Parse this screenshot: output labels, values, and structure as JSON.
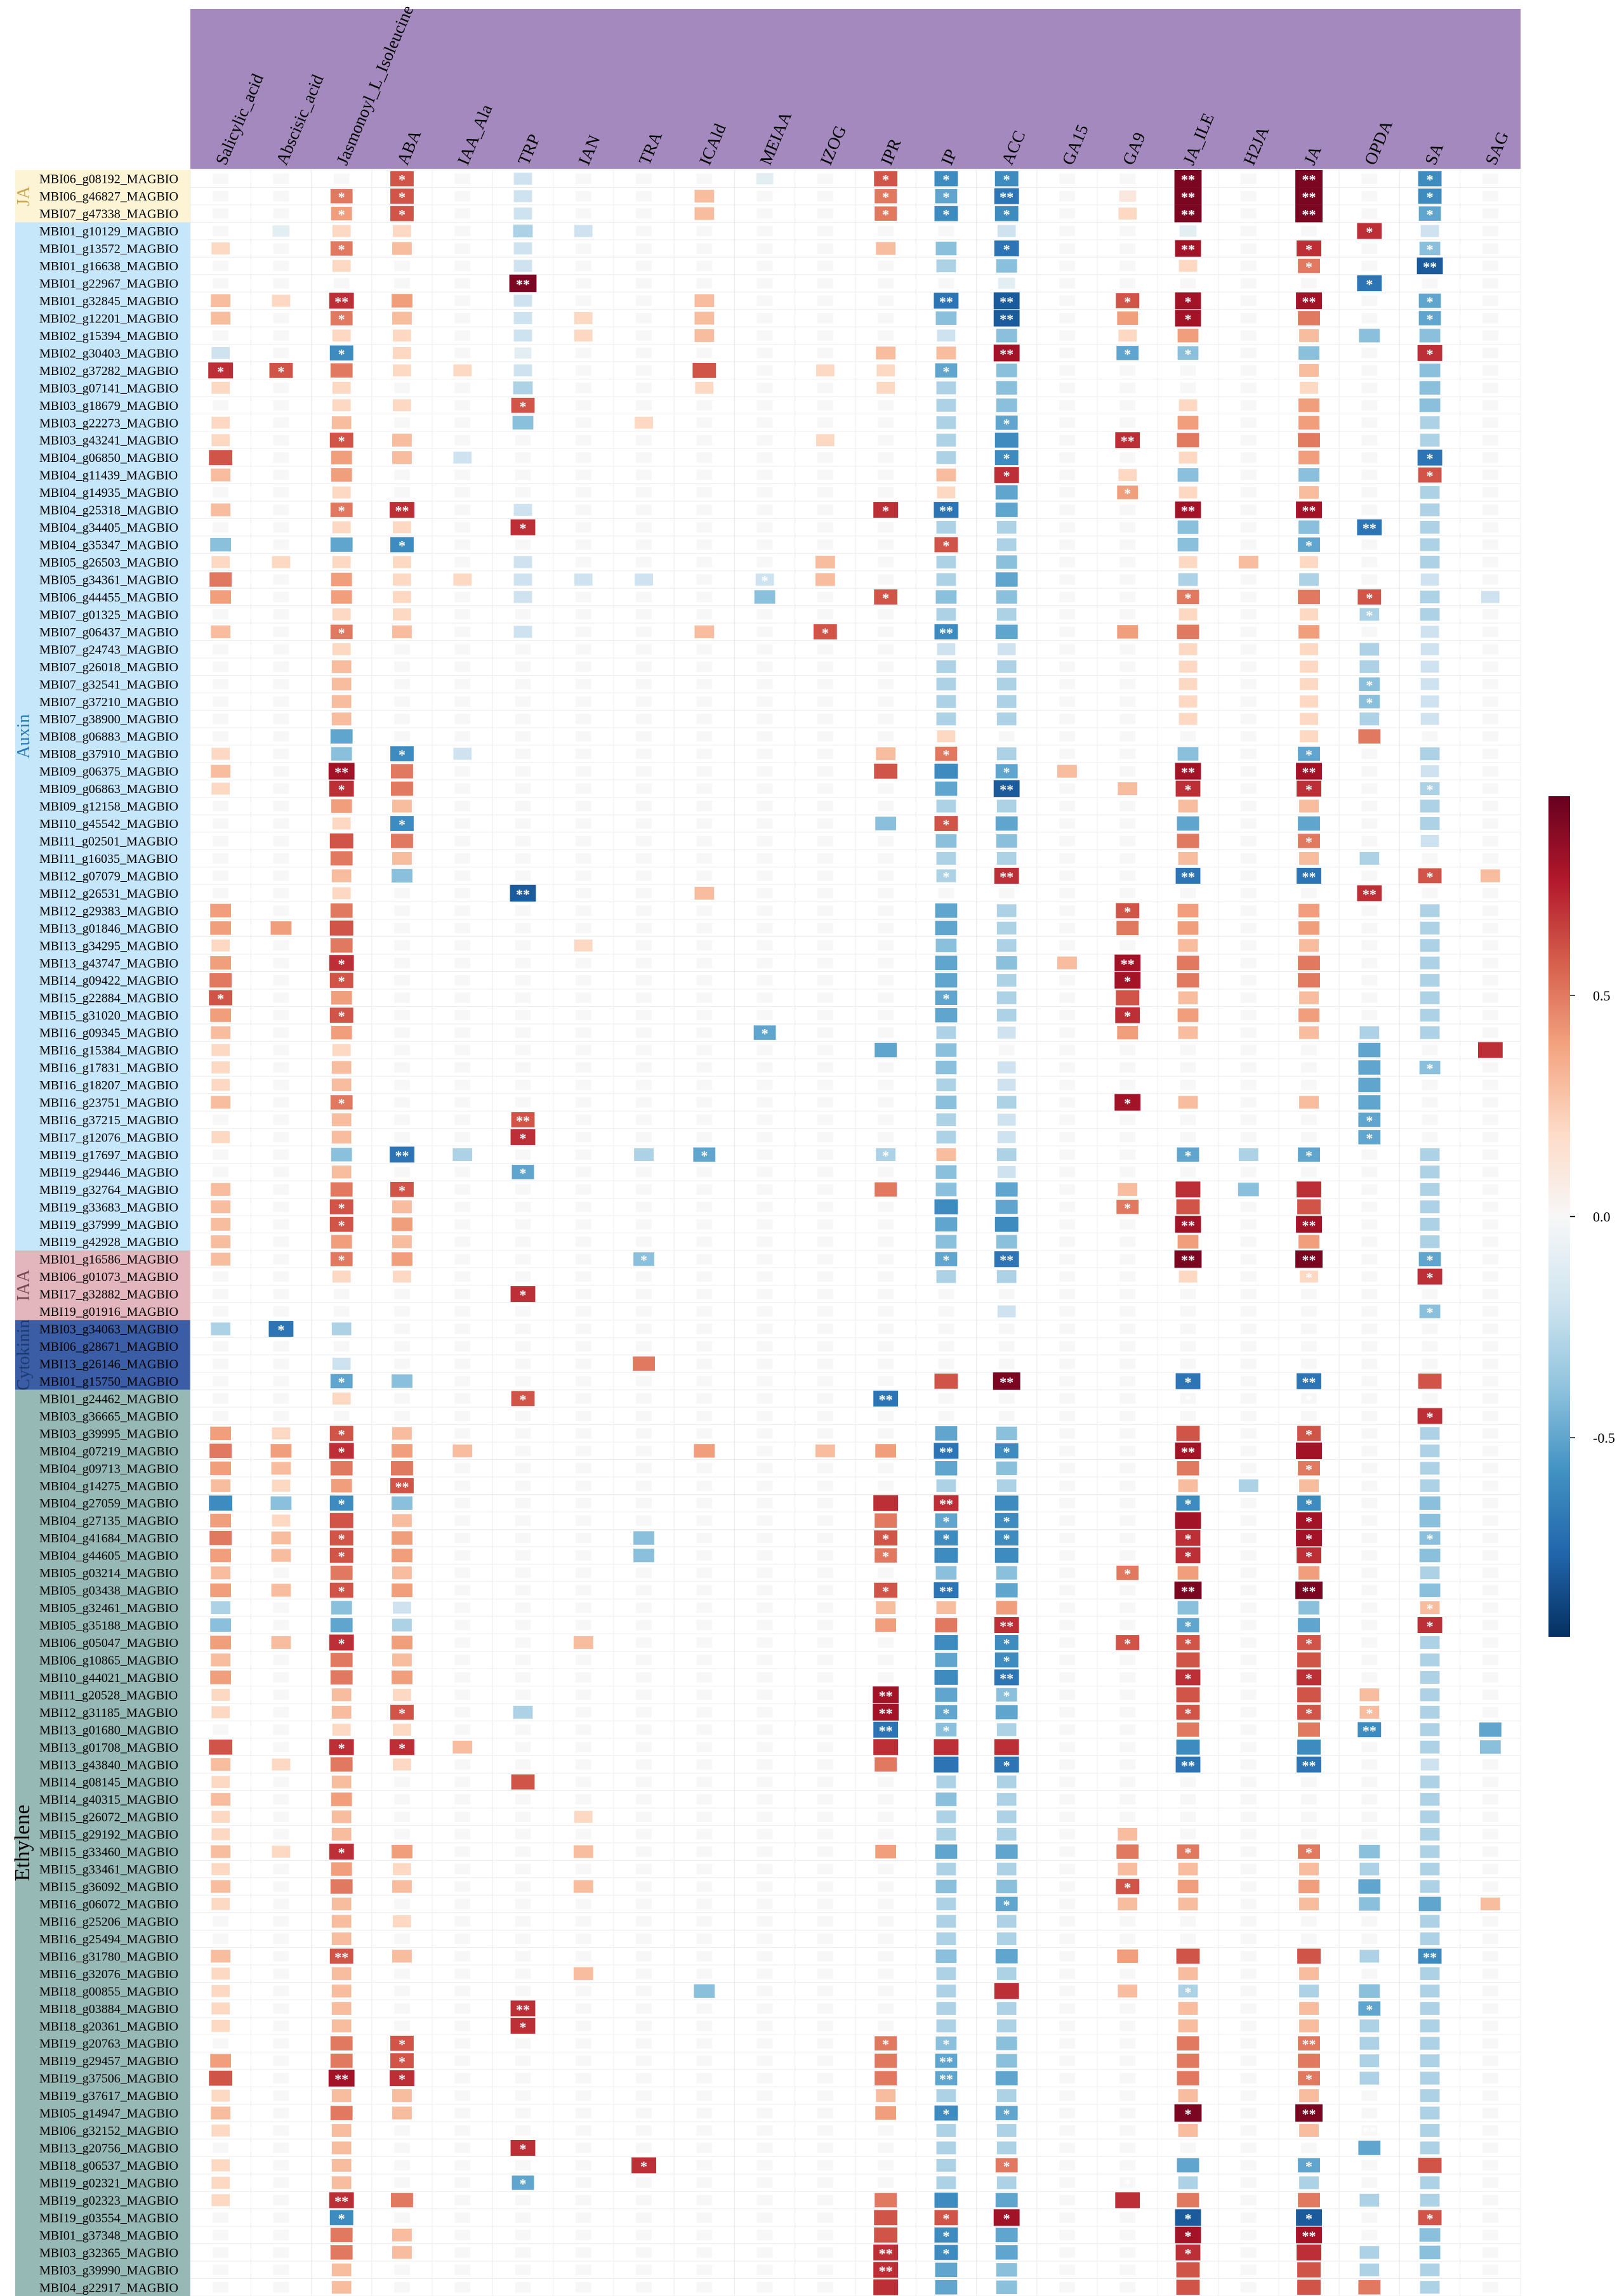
{
  "chart_data": {
    "type": "heatmap",
    "title": "",
    "columns": [
      "Salicylic_acid",
      "Abscisic_acid",
      "Jasmonoyl_L_Isoleucine",
      "ABA",
      "IAA_Ala",
      "TRP",
      "IAN",
      "TRA",
      "ICAld",
      "MEIAA",
      "IZOG",
      "IPR",
      "IP",
      "ACC",
      "GA15",
      "GA9",
      "JA_ILE",
      "H2JA",
      "JA",
      "OPDA",
      "SA",
      "SAG"
    ],
    "groups": [
      {
        "name": "JA",
        "color": "#fdf4d6",
        "rows": [
          "MBI06_g08192_MAGBIO",
          "MBI06_g46827_MAGBIO",
          "MBI07_g47338_MAGBIO"
        ]
      },
      {
        "name": "Auxin",
        "color": "#c6e6f9",
        "rows": [
          "MBI01_g10129_MAGBIO",
          "MBI01_g13572_MAGBIO",
          "MBI01_g16638_MAGBIO",
          "MBI01_g22967_MAGBIO",
          "MBI01_g32845_MAGBIO",
          "MBI02_g12201_MAGBIO",
          "MBI02_g15394_MAGBIO",
          "MBI02_g30403_MAGBIO",
          "MBI02_g37282_MAGBIO",
          "MBI03_g07141_MAGBIO",
          "MBI03_g18679_MAGBIO",
          "MBI03_g22273_MAGBIO",
          "MBI03_g43241_MAGBIO",
          "MBI04_g06850_MAGBIO",
          "MBI04_g11439_MAGBIO",
          "MBI04_g14935_MAGBIO",
          "MBI04_g25318_MAGBIO",
          "MBI04_g34405_MAGBIO",
          "MBI04_g35347_MAGBIO",
          "MBI05_g26503_MAGBIO",
          "MBI05_g34361_MAGBIO",
          "MBI06_g44455_MAGBIO",
          "MBI07_g01325_MAGBIO",
          "MBI07_g06437_MAGBIO",
          "MBI07_g24743_MAGBIO",
          "MBI07_g26018_MAGBIO",
          "MBI07_g32541_MAGBIO",
          "MBI07_g37210_MAGBIO",
          "MBI07_g38900_MAGBIO",
          "MBI08_g06883_MAGBIO",
          "MBI08_g37910_MAGBIO",
          "MBI09_g06375_MAGBIO",
          "MBI09_g06863_MAGBIO",
          "MBI09_g12158_MAGBIO",
          "MBI10_g45542_MAGBIO",
          "MBI11_g02501_MAGBIO",
          "MBI11_g16035_MAGBIO",
          "MBI12_g07079_MAGBIO",
          "MBI12_g26531_MAGBIO",
          "MBI12_g29383_MAGBIO",
          "MBI13_g01846_MAGBIO",
          "MBI13_g34295_MAGBIO",
          "MBI13_g43747_MAGBIO",
          "MBI14_g09422_MAGBIO",
          "MBI15_g22884_MAGBIO",
          "MBI15_g31020_MAGBIO",
          "MBI16_g09345_MAGBIO",
          "MBI16_g15384_MAGBIO",
          "MBI16_g17831_MAGBIO",
          "MBI16_g18207_MAGBIO",
          "MBI16_g23751_MAGBIO",
          "MBI16_g37215_MAGBIO",
          "MBI17_g12076_MAGBIO",
          "MBI19_g17697_MAGBIO",
          "MBI19_g29446_MAGBIO",
          "MBI19_g32764_MAGBIO",
          "MBI19_g33683_MAGBIO",
          "MBI19_g37999_MAGBIO",
          "MBI19_g42928_MAGBIO"
        ]
      },
      {
        "name": "IAA",
        "color": "#e3b5bd",
        "rows": [
          "MBI01_g16586_MAGBIO",
          "MBI06_g01073_MAGBIO",
          "MBI17_g32882_MAGBIO",
          "MBI19_g01916_MAGBIO"
        ]
      },
      {
        "name": "Cytokinin",
        "color": "#3a5da6",
        "rows": [
          "MBI03_g34063_MAGBIO",
          "MBI06_g28671_MAGBIO",
          "MBI13_g26146_MAGBIO",
          "MBI01_g15750_MAGBIO"
        ]
      },
      {
        "name": "Ethylene",
        "color": "#97b9b6",
        "rows": [
          "MBI01_g24462_MAGBIO",
          "MBI03_g36665_MAGBIO",
          "MBI03_g39995_MAGBIO",
          "MBI04_g07219_MAGBIO",
          "MBI04_g09713_MAGBIO",
          "MBI04_g14275_MAGBIO",
          "MBI04_g27059_MAGBIO",
          "MBI04_g27135_MAGBIO",
          "MBI04_g41684_MAGBIO",
          "MBI04_g44605_MAGBIO",
          "MBI05_g03214_MAGBIO",
          "MBI05_g03438_MAGBIO",
          "MBI05_g32461_MAGBIO",
          "MBI05_g35188_MAGBIO",
          "MBI06_g05047_MAGBIO",
          "MBI06_g10865_MAGBIO",
          "MBI10_g44021_MAGBIO",
          "MBI11_g20528_MAGBIO",
          "MBI12_g31185_MAGBIO",
          "MBI13_g01680_MAGBIO",
          "MBI13_g01708_MAGBIO",
          "MBI13_g43840_MAGBIO",
          "MBI14_g08145_MAGBIO",
          "MBI14_g40315_MAGBIO",
          "MBI15_g26072_MAGBIO",
          "MBI15_g29192_MAGBIO",
          "MBI15_g33460_MAGBIO",
          "MBI15_g33461_MAGBIO",
          "MBI15_g36092_MAGBIO",
          "MBI16_g06072_MAGBIO",
          "MBI16_g25206_MAGBIO",
          "MBI16_g25494_MAGBIO",
          "MBI16_g31780_MAGBIO",
          "MBI16_g32076_MAGBIO",
          "MBI18_g00855_MAGBIO",
          "MBI18_g03884_MAGBIO",
          "MBI18_g20361_MAGBIO",
          "MBI19_g20763_MAGBIO",
          "MBI19_g29457_MAGBIO",
          "MBI19_g37506_MAGBIO",
          "MBI19_g37617_MAGBIO",
          "MBI05_g14947_MAGBIO",
          "MBI06_g32152_MAGBIO",
          "MBI13_g20756_MAGBIO",
          "MBI18_g06537_MAGBIO",
          "MBI19_g02321_MAGBIO",
          "MBI19_g02323_MAGBIO",
          "MBI19_g03554_MAGBIO",
          "MBI01_g37348_MAGBIO",
          "MBI03_g32365_MAGBIO",
          "MBI03_g39990_MAGBIO",
          "MBI04_g22917_MAGBIO"
        ]
      }
    ],
    "legend": {
      "ticks": [
        0.5,
        0.0,
        -0.5
      ],
      "tick_labels": [
        "0.5",
        "0.0",
        "-0.5"
      ],
      "range": [
        -0.95,
        0.95
      ],
      "position": "right",
      "colors": [
        "#053061",
        "#2166ac",
        "#4393c3",
        "#92c5de",
        "#d1e5f0",
        "#f7f7f7",
        "#fddbc7",
        "#f4a582",
        "#d6604d",
        "#b2182b",
        "#67001f"
      ]
    },
    "values": [
      "0 0 0 6 0 -2 0 0 0 -1 0 6 -6 -6 0 0 9 0 9 0 -6 0",
      "0 0 5 6 0 -2 0 0 3 0 0 5 -5 -7 0 1 9 0 9 0 -6 0",
      "0 0 4 6 0 -2 0 0 3 0 0 5 -6 -6 0 2 9 0 9 0 -5 0",
      "0 -1 2 2 0 -3 -2 0 0 0 0 0 0 -2 0 0 -1 0 0 7 -2 0",
      "2 0 5 3 0 -2 0 0 0 0 0 3 -4 -7 0 0 8 0 7 0 -4 0",
      "0 0 2 0 0 -2 0 0 0 0 0 0 -3 -4 0 0 2 0 5 0 -8 0",
      "0 0 0 0 0 9 0 0 0 0 0 0 0 -1 0 0 0 0 0 -7 0 0",
      "3 2 7 4 0 -2 0 0 3 0 0 0 -7 -8 0 6 8 0 8 0 -5 0",
      "3 0 5 3 0 -2 2 0 3 0 0 0 -4 -8 0 4 8 0 5 0 -5 0",
      "0 0 2 2 0 -2 2 0 3 0 0 0 -2 -4 0 2 4 0 3 -4 -4 0",
      "-2 0 -6 2 0 -1 0 0 0 0 0 3 3 8 0 -5 -4 0 -4 0 7 0",
      "7 6 5 2 2 -2 0 0 6 0 2 2 -5 -4 0 0 0 0 3 0 -4 0",
      "2 0 2 0 0 -3 0 0 2 0 0 2 -3 -4 0 0 0 0 2 0 -4 0",
      "0 0 2 2 0 6 0 0 0 0 0 0 -3 -4 0 0 2 0 4 0 -4 0",
      "2 0 3 0 0 -4 0 2 0 0 0 0 -3 -5 0 0 4 0 4 0 -3 0",
      "2 0 6 3 0 0 0 0 0 0 2 0 -3 -6 0 7 5 0 5 0 -3 0",
      "6 0 4 3 -2 0 0 0 0 0 0 0 -3 -6 0 0 2 0 4 0 -7 0",
      "3 0 4 0 0 0 0 0 0 0 0 0 3 7 0 2 -4 0 -4 0 6 0",
      "0 0 2 0 0 0 0 0 0 0 0 0 2 -5 0 4 2 0 3 0 -3 0",
      "3 0 5 7 0 -2 0 0 0 0 0 7 -7 -5 0 0 8 0 8 0 -3 0",
      "0 0 2 2 0 7 0 0 0 0 0 0 -3 -3 0 0 -4 0 -4 -7 -3 0",
      "-4 0 -5 -6 0 0 0 0 0 0 0 0 6 -3 0 0 -4 0 -5 0 -3 0",
      "2 2 2 2 0 -2 0 0 0 0 3 0 -3 -4 0 0 2 3 2 0 -3 0",
      "5 0 4 2 2 -2 -2 -2 0 -2 3 0 -3 -5 0 0 -3 0 -3 0 -2 0",
      "4 0 4 2 0 -2 0 0 0 -4 0 6 -4 -4 0 0 5 0 5 6 -3 -2",
      "0 0 2 2 0 0 0 0 0 0 0 0 -3 -3 0 0 2 0 2 -3 -3 0",
      "3 0 5 3 0 -2 0 0 3 0 6 0 -6 -5 0 4 5 0 4 0 -2 0",
      "0 0 2 0 0 0 0 0 0 0 0 0 -2 -2 0 0 2 0 2 -3 -2 0",
      "0 0 3 0 0 0 0 0 0 0 0 0 -3 -3 0 0 2 0 2 -3 -2 0",
      "0 0 3 0 0 0 0 0 0 0 0 0 -3 -3 0 0 2 0 2 -4 -2 0",
      "0 0 3 0 0 0 0 0 0 0 0 0 -3 -3 0 0 2 0 2 -4 -2 0",
      "0 0 3 0 0 0 0 0 0 0 0 0 -3 -3 0 0 2 0 2 -3 -2 0",
      "0 0 -5 0 0 0 0 0 0 0 0 0 2 0 0 0 0 0 2 5 0 0",
      "2 0 -4 -6 -2 0 0 0 0 0 0 3 5 -3 0 0 -4 0 -5 0 -3 0",
      "3 0 8 5 0 0 0 0 0 0 0 6 -6 -5 3 0 8 0 8 0 -2 0",
      "2 0 7 5 0 0 0 0 0 0 0 0 -5 -8 0 3 7 0 7 0 -3 0",
      "0 0 4 3 0 0 0 0 0 0 0 0 -3 -3 0 0 3 0 3 0 -3 0",
      "0 0 2 -6 0 0 0 0 0 0 0 -4 6 -5 0 0 -5 0 -5 0 -3 0",
      "0 0 6 5 0 0 0 0 0 0 0 0 -4 -4 0 0 5 0 5 0 -2 0",
      "0 0 5 3 0 0 0 0 0 0 0 0 -3 -3 0 0 3 0 3 -3 0 0",
      "0 0 3 -4 0 0 0 0 0 0 0 0 -3 7 0 0 -7 0 -7 0 6 3",
      "0 0 2 0 0 -8 0 0 3 0 0 0 0 0 0 0 0 0 0 7 0 0",
      "4 0 5 0 0 0 0 0 0 0 0 0 -5 -3 0 6 4 0 4 0 -3 0",
      "4 4 6 0 0 0 0 0 0 0 0 0 -5 -3 0 5 4 0 4 0 -3 0",
      "2 0 5 0 0 0 2 0 0 0 0 0 -4 -3 0 0 3 0 3 0 -3 0",
      "4 0 7 0 0 0 0 0 0 0 0 0 -5 -4 3 8 5 0 5 0 -3 0",
      "5 0 6 0 0 0 0 0 0 0 0 0 -5 -3 0 8 5 0 5 0 -3 0",
      "6 0 4 0 0 0 0 0 0 0 0 0 -5 -3 0 6 3 0 3 0 -3 0",
      "4 0 6 0 0 0 0 0 0 0 0 0 -5 -3 0 7 4 0 4 0 -3 0",
      "3 0 4 0 0 0 0 0 0 -5 0 0 -3 -2 0 4 3 0 3 -3 -3 0",
      "2 0 2 0 0 0 0 0 0 0 0 -5 -4 0 0 0 0 0 0 -5 0 7",
      "2 0 3 0 0 0 0 0 0 0 0 0 -4 -2 0 0 0 0 0 -5 -4 0",
      "2 0 3 0 0 0 0 0 0 0 0 0 -3 -2 0 0 0 0 0 -5 0 0",
      "3 0 5 0 0 0 0 0 0 0 0 0 -4 -3 0 8 3 0 3 -5 0 0",
      "0 0 3 0 0 6 0 0 0 0 0 0 -3 -2 0 0 0 0 0 -5 0 0",
      "2 0 3 0 0 7 0 0 0 0 0 0 -3 -2 0 0 0 0 0 -5 0 0",
      "0 0 -4 -7 -3 0 0 -3 -5 0 0 -3 3 -3 0 0 -5 -3 -5 0 -3 0",
      "0 0 3 0 0 -5 0 0 0 0 0 0 -4 -2 0 0 0 0 0 0 -3 0",
      "3 0 5 6 0 0 0 0 0 0 0 5 -4 -5 0 3 7 -4 7 0 -3 0",
      "3 0 6 3 0 0 0 0 0 0 0 0 -6 -5 0 5 6 0 6 0 -3 0",
      "3 0 6 4 0 0 0 0 0 0 0 0 -5 -6 0 0 8 0 8 0 -3 0",
      "3 0 4 3 0 0 0 0 0 0 0 0 -4 -4 0 0 4 0 4 0 -3 0",
      "3 0 5 4 0 0 0 -4 0 0 0 0 -5 -7 0 0 9 0 9 0 -5 0",
      "0 0 2 2 0 0 0 0 0 0 0 0 -3 -3 0 0 2 0 2 0 7 0",
      "0 0 0 0 0 7 0 0 0 0 0 0 0 0 0 0 0 0 0 0 0 0",
      "0 0 0 0 0 0 0 0 0 0 0 0 0 -2 0 0 0 0 0 0 -4 0",
      "-3 -7 -3 0 0 0 0 0 0 0 0 0 0 0 0 0 0 0 0 0 0 0",
      "0 0 0 0 0 0 0 0 0 0 0 0 0 0 0 0 0 0 0 0 0 0",
      "0 0 -2 0 0 0 0 5 0 0 0 0 0 0 0 0 0 0 0 0 0 0",
      "0 0 -5 -4 0 0 0 0 0 0 0 0 6 9 0 0 -7 0 -7 0 6 0",
      "0 0 2 0 0 6 0 0 0 0 0 -7 0 0 0 0 0 0 0 0 0 0",
      "0 0 0 0 0 0 0 0 0 0 0 0 0 0 0 0 0 0 0 0 7 0",
      "4 2 6 3 0 0 0 0 0 0 0 0 -5 -4 0 0 6 0 6 0 -3 0",
      "5 4 7 4 3 0 0 0 4 0 3 4 -7 -6 0 0 8 0 8 0 -3 0",
      "4 3 5 5 0 0 0 0 0 0 0 0 -5 -4 0 0 5 0 5 0 -3 0",
      "3 2 4 6 0 0 0 0 0 0 0 0 -3 -3 0 0 3 -3 3 0 -3 0",
      "-6 -4 -6 -4 0 0 0 0 0 0 0 7 7 -6 0 0 -6 0 -6 0 -4 0",
      "4 2 6 3 0 0 0 0 0 0 0 5 -5 -6 0 0 8 0 8 0 -4 0",
      "5 3 6 4 0 0 0 -4 0 0 0 6 -6 -6 0 0 7 0 8 0 -4 0",
      "4 3 6 4 0 0 0 -4 0 0 0 5 -6 -6 0 0 7 0 7 0 -4 0",
      "3 0 5 3 0 0 0 0 0 0 0 0 -4 -4 0 5 4 0 4 0 -3 0",
      "4 3 6 4 0 0 0 0 0 0 0 6 -7 -5 0 0 9 0 9 0 -4 0",
      "-3 0 -4 -2 0 0 0 0 0 0 0 3 3 4 0 0 -4 0 -4 0 3 0",
      "-4 0 -5 -3 0 0 0 0 0 0 0 4 5 7 0 0 -5 0 -5 0 7 0",
      "4 3 7 4 0 0 3 0 0 0 0 0 -6 -6 0 6 6 0 6 0 -3 0",
      "3 0 5 3 0 0 0 0 0 0 0 0 -5 -6 0 0 6 0 6 0 -3 0",
      "4 0 5 4 0 0 0 0 0 0 0 0 -6 -7 0 0 7 0 7 0 -3 0",
      "2 0 3 2 0 0 0 0 0 0 0 8 -5 -4 0 0 6 0 6 3 -3 0",
      "2 0 3 6 0 -3 0 0 0 0 0 8 -5 -5 0 0 6 0 6 3 -3 0",
      "0 0 2 2 0 0 0 0 0 0 0 -7 -4 -3 0 0 5 0 5 -6 -3 -5",
      "6 0 7 7 3 0 0 0 0 0 0 7 7 7 0 0 -6 0 -6 0 -3 -4",
      "3 2 5 2 0 0 0 0 0 0 0 5 -7 -7 0 0 -7 0 -7 0 -2 0",
      "2 0 3 0 0 6 0 0 0 0 0 0 -3 -3 0 0 0 0 0 0 -3 0",
      "3 0 4 0 0 0 0 0 0 0 0 0 -4 -3 0 0 0 0 0 0 -3 0",
      "2 0 3 0 0 0 2 0 0 0 0 0 -3 -3 0 0 0 0 0 0 -3 0",
      "2 0 3 0 0 0 0 0 0 0 0 0 -3 -3 0 3 0 0 0 0 -3 0",
      "3 2 7 4 0 0 3 0 0 0 0 4 -5 -5 0 5 5 0 5 -4 -3 0",
      "2 0 4 2 0 0 0 0 0 0 0 0 -3 -3 0 3 3 0 3 -3 -3 0",
      "3 0 5 3 0 0 3 0 0 0 0 0 -4 -4 0 6 4 0 4 -5 -3 0",
      "2 0 3 0 0 0 0 0 0 0 0 0 -3 -5 0 3 3 0 3 -4 -5 3",
      "0 0 3 2 0 0 0 0 0 0 0 0 -3 -3 0 0 0 0 0 0 -3 0",
      "0 0 3 0 0 0 0 0 0 0 0 0 -3 -3 0 0 0 0 0 0 -3 0",
      "3 0 6 3 0 0 0 0 0 0 0 0 -4 -5 0 4 6 0 6 -3 -6 0",
      "2 0 3 0 0 0 3 0 0 0 0 0 -3 -3 0 0 3 0 3 0 -3 0",
      "2 0 3 0 0 0 0 0 -4 0 0 0 -3 7 0 3 -3 0 -3 -4 -3 0",
      "2 0 3 0 0 7 0 0 0 0 0 0 -3 -3 0 0 3 0 3 -5 -3 0",
      "2 0 3 0 0 7 0 0 0 0 0 0 -3 -3 0 0 3 0 3 -3 -3 0",
      "0 0 5 6 0 0 0 0 0 0 0 5 -4 -4 0 0 5 0 5 -3 -3 0",
      "4 0 5 6 0 0 0 0 0 0 0 5 -5 -4 0 0 5 0 5 -3 -3 0",
      "6 0 8 7 0 0 0 0 0 0 0 5 -5 -5 0 0 5 0 5 -3 -3 0",
      "2 0 3 3 0 0 0 0 0 0 0 3 -3 -3 0 0 3 0 3 0 -3 0",
      "3 0 5 3 0 0 0 0 0 0 0 4 -6 -5 0 0 9 0 9 0 -3 0",
      "2 0 3 0 0 0 0 0 0 0 0 0 -3 -3 0 0 3 0 3 0 -3 0",
      "0 0 3 0 0 7 0 0 0 0 0 0 -3 -3 0 0 0 0 0 -5 -3 0",
      "2 0 3 0 0 0 0 7 0 0 0 0 -3 5 0 0 -5 0 -5 0 6 0",
      "2 0 3 0 0 -5 0 0 0 0 0 0 -3 -3 0 0 -3 0 -3 0 -3 0",
      "2 0 7 5 0 0 0 0 0 0 0 5 -6 -5 0 7 5 0 5 -3 -3 0",
      "0 0 -6 0 0 0 0 0 0 0 0 6 6 8 0 0 -8 0 -8 0 6 0",
      "0 0 5 3 0 0 0 0 0 0 0 6 -6 -5 0 0 8 0 8 0 -4 0",
      "0 0 5 3 0 0 0 0 0 0 0 7 -6 -5 0 0 7 0 7 -3 -4 0",
      "0 0 3 0 0 0 0 0 0 0 0 7 -5 -4 0 0 6 0 6 -3 -3 0",
      "0 0 3 0 0 0 0 0 0 0 0 7 -5 -4 0 0 6 0 6 5 -3 0"
    ],
    "significance": [
      "0 0 0 1 0 0 0 0 0 0 0 1 1 1 0 0 2 0 2 0 1 0",
      "0 0 1 1 0 0 0 0 0 0 0 1 1 2 0 0 2 0 2 0 1 0",
      "0 0 1 1 0 0 0 0 0 0 0 1 1 1 0 0 2 0 2 0 1 0",
      "0 0 0 0 0 0 0 0 0 0 0 0 0 0 0 0 0 0 0 1 0 0",
      "0 0 1 0 0 0 0 0 0 0 0 0 0 1 0 0 2 0 1 0 1 0",
      "0 0 0 0 0 0 0 0 0 0 0 0 0 0 0 0 0 0 1 0 2 0",
      "0 0 0 0 0 2 0 0 0 0 0 0 0 0 0 0 0 0 0 1 0 0",
      "0 0 2 0 0 0 0 0 0 0 0 0 2 2 0 1 1 0 2 0 1 0",
      "0 0 1 0 0 0 0 0 0 0 0 0 0 2 0 0 1 0 0 0 1 0",
      "0 0 0 0 0 0 0 0 0 0 0 0 0 0 0 0 0 0 0 0 0 0",
      "0 0 1 0 0 0 0 0 0 0 0 0 0 2 0 1 1 0 0 0 1 0",
      "1 1 0 0 0 0 0 0 0 0 0 0 1 0 0 0 0 0 0 0 0 0",
      "0 0 0 0 0 0 0 0 0 0 0 0 0 0 0 0 0 0 0 0 0 0",
      "0 0 0 0 0 1 0 0 0 0 0 0 0 0 0 0 0 0 0 0 0 0",
      "0 0 0 0 0 0 0 0 0 0 0 0 0 1 0 0 0 0 0 0 0 0",
      "0 0 1 0 0 0 0 0 0 0 0 0 0 0 0 2 0 0 0 0 0 0",
      "0 0 0 0 0 0 0 0 0 0 0 0 0 1 0 0 0 0 0 0 1 0",
      "0 0 0 0 0 0 0 0 0 0 0 0 0 1 0 0 0 0 0 0 1 0",
      "0 0 0 0 0 0 0 0 0 0 0 0 0 0 0 1 0 0 0 0 0 0",
      "0 0 1 2 0 0 0 0 0 0 0 1 2 0 0 0 2 0 2 0 0 0",
      "0 0 0 0 0 1 0 0 0 0 0 0 0 0 0 0 0 0 0 2 0 0",
      "0 0 0 1 0 0 0 0 0 0 0 0 1 0 0 0 0 0 1 0 0 0",
      "0 0 0 0 0 0 0 0 0 0 0 0 0 0 0 0 0 0 0 0 0 0",
      "0 0 0 0 0 0 0 0 0 1 0 0 0 0 0 0 0 0 0 0 0 0",
      "0 0 0 0 0 0 0 0 0 0 0 1 0 0 0 0 1 0 0 1 0 0",
      "0 0 0 0 0 0 0 0 0 0 0 0 0 0 0 0 0 0 0 1 0 0",
      "0 0 1 0 0 0 0 0 0 0 1 0 2 0 0 0 0 0 0 0 0 0",
      "0 0 0 0 0 0 0 0 0 0 0 0 0 0 0 0 0 0 0 0 0 0",
      "0 0 0 0 0 0 0 0 0 0 0 0 0 0 0 0 0 0 0 0 0 0",
      "0 0 0 0 0 0 0 0 0 0 0 0 0 0 0 0 0 0 0 1 0 0",
      "0 0 0 0 0 0 0 0 0 0 0 0 0 0 0 0 0 0 0 1 0 0",
      "0 0 0 0 0 0 0 0 0 0 0 0 0 0 0 0 0 0 0 0 0 0",
      "0 0 0 0 0 0 0 0 0 0 0 0 0 0 0 0 0 0 0 0 0 0",
      "0 0 0 1 0 0 0 0 0 0 0 0 1 0 0 0 0 0 1 0 0 0",
      "0 0 2 0 0 0 0 0 0 0 0 0 0 1 0 0 2 0 2 0 0 0",
      "0 0 1 0 0 0 0 0 0 0 0 0 0 2 0 0 1 0 1 0 1 0",
      "0 0 0 0 0 0 0 0 0 0 0 0 0 0 0 0 0 0 0 0 0 0",
      "0 0 0 1 0 0 0 0 0 0 0 0 1 0 0 0 0 0 0 0 0 0",
      "0 0 0 0 0 0 0 0 0 0 0 0 0 0 0 0 0 0 1 0 0 0",
      "0 0 0 0 0 0 0 0 0 0 0 0 0 0 0 0 0 0 0 0 0 0",
      "0 0 0 0 0 0 0 0 0 0 0 0 1 2 0 0 2 0 2 0 1 0",
      "0 0 0 0 0 2 0 0 0 0 0 0 0 0 0 0 0 0 0 2 0 0",
      "0 0 0 0 0 0 0 0 0 0 0 0 0 0 0 1 0 0 0 0 0 0",
      "0 0 0 0 0 0 0 0 0 0 0 0 0 0 0 0 0 0 0 0 0 0",
      "0 0 0 0 0 0 0 0 0 0 0 0 0 0 0 0 0 0 0 0 0 0",
      "0 0 1 0 0 0 0 0 0 0 0 0 0 0 0 2 0 0 0 0 0 0",
      "0 0 1 0 0 0 0 0 0 0 0 0 0 0 0 1 0 0 0 0 0 0",
      "1 0 0 0 0 0 0 0 0 0 0 0 1 0 0 0 0 0 0 0 0 0",
      "0 0 1 0 0 0 0 0 0 0 0 0 0 0 0 1 0 0 0 0 0 0",
      "0 0 0 0 0 0 0 0 0 1 0 0 0 0 0 0 0 0 0 0 0 0",
      "0 0 0 0 0 0 0 0 0 0 0 0 0 0 0 0 0 0 0 0 0 0",
      "0 0 0 0 0 0 0 0 0 0 0 0 0 0 0 0 0 0 0 0 1 0",
      "0 0 0 0 0 0 0 0 0 0 0 0 0 0 0 0 0 0 0 0 0 0",
      "0 0 1 0 0 0 0 0 0 0 0 0 0 0 0 1 0 0 0 0 0 0",
      "0 0 0 0 0 2 0 0 0 0 0 0 0 0 0 0 0 0 0 1 0 0",
      "0 0 0 0 0 1 0 0 0 0 0 0 0 0 0 0 0 0 0 1 0 0",
      "0 0 0 2 0 0 0 0 1 0 0 1 0 0 0 0 1 0 1 0 0 0",
      "0 0 0 0 0 1 0 0 0 0 0 0 0 0 0 0 0 0 0 0 0 0",
      "0 0 0 1 0 0 0 0 0 0 0 0 0 0 0 0 0 0 0 0 0 0",
      "0 0 1 0 0 0 0 0 0 0 0 0 0 0 0 1 0 0 0 0 0 0",
      "0 0 1 0 0 0 0 0 0 0 0 0 0 0 0 0 2 0 2 0 0 0",
      "0 0 0 0 0 0 0 0 0 0 0 0 0 0 0 0 0 0 0 0 0 0",
      "0 0 1 0 0 0 0 1 0 0 0 0 1 2 0 0 2 0 2 0 1 0",
      "0 0 0 0 0 0 0 0 0 0 0 0 0 0 0 0 0 0 1 0 1 0",
      "0 0 0 0 0 1 0 0 0 0 0 0 0 0 0 0 0 0 0 0 0 0",
      "0 0 0 0 0 0 0 0 0 0 0 0 0 0 0 0 0 0 0 0 1 0",
      "0 1 0 0 0 0 0 0 0 0 0 0 0 0 0 0 0 0 0 0 0 0",
      "0 0 0 0 0 0 0 0 0 0 0 0 0 0 0 0 0 0 0 0 0 0",
      "0 0 0 0 0 0 0 0 0 0 0 0 0 0 0 0 0 0 0 0 0 0",
      "0 0 1 0 0 0 0 0 0 0 0 0 0 2 0 0 1 0 2 0 0 0",
      "0 0 0 0 0 1 0 0 0 0 0 2 0 0 0 0 1 0 1 0 0 0",
      "0 0 0 0 0 0 0 0 0 0 0 0 0 0 0 0 0 0 0 0 1 0",
      "0 0 1 0 0 0 0 0 0 0 0 0 0 0 0 0 0 0 1 0 0 0",
      "0 0 1 0 0 0 0 0 0 0 0 0 2 1 0 0 2 0 0 0 0 0",
      "0 0 0 0 0 0 0 0 0 0 0 0 0 0 0 0 0 0 1 0 0 0",
      "0 0 0 2 0 0 0 0 0 0 0 0 0 0 0 0 0 0 0 0 0 0",
      "0 0 1 0 0 0 0 0 0 0 0 0 2 0 0 0 1 0 1 0 0 0",
      "0 0 0 0 0 0 0 0 0 0 0 0 1 1 0 0 0 0 1 0 0 0",
      "0 0 1 0 0 0 0 0 0 0 0 1 1 1 0 0 1 0 1 0 1 0",
      "0 0 1 0 0 0 0 0 0 0 0 1 0 0 0 0 1 0 1 0 0 0",
      "0 0 0 0 0 0 0 0 0 0 0 0 0 0 0 1 0 0 0 0 0 0",
      "0 0 1 0 0 0 0 0 0 0 0 1 2 0 0 0 2 0 2 0 0 0",
      "0 0 0 0 0 0 0 0 0 0 0 0 0 0 0 0 0 0 0 0 1 0",
      "0 0 0 0 0 0 0 0 0 0 0 0 0 2 0 0 1 0 0 0 1 0",
      "0 0 1 0 0 0 0 0 0 0 0 0 0 1 0 1 1 0 1 0 0 0",
      "0 0 0 0 0 0 0 0 0 0 0 0 0 1 0 0 0 0 0 0 0 0",
      "0 0 0 0 0 0 0 0 0 0 0 0 0 2 0 0 1 0 1 0 0 0",
      "0 0 0 0 0 0 0 0 0 0 0 2 0 1 0 0 0 0 0 0 0 0",
      "0 0 0 1 0 0 0 0 0 0 0 2 1 0 0 0 1 0 1 1 0 0",
      "0 0 0 0 0 0 0 0 0 0 0 2 1 0 0 0 0 0 0 2 0 0",
      "0 0 1 1 0 0 0 0 0 0 0 0 0 0 0 0 0 0 0 0 0 0",
      "0 0 0 0 0 0 0 0 0 0 0 0 0 1 0 0 2 0 2 0 0 0",
      "0 0 0 0 0 0 0 0 0 0 0 0 0 0 0 0 0 0 0 0 0 0",
      "0 0 0 0 0 0 0 0 0 0 0 0 0 0 0 0 0 0 0 0 0 0",
      "0 0 0 0 0 0 0 0 0 0 0 0 0 0 0 0 0 0 0 0 0 0",
      "0 0 0 0 0 0 0 0 0 0 0 0 0 0 0 0 0 0 0 0 0 0",
      "0 0 1 0 0 0 0 0 0 0 0 0 0 0 0 0 1 0 1 0 0 0",
      "0 0 0 0 0 0 0 0 0 0 0 0 0 0 0 0 0 0 0 0 0 0",
      "0 0 0 0 0 0 0 0 0 0 0 0 0 0 0 1 0 0 0 0 0 0",
      "0 0 0 0 0 0 0 0 0 0 0 0 0 1 0 0 0 0 0 0 0 0",
      "0 0 0 0 0 0 0 0 0 0 0 0 0 0 0 0 0 0 0 0 0 0",
      "0 0 0 0 0 0 0 0 0 0 0 0 0 0 0 0 0 0 0 0 0 0",
      "0 0 2 0 0 0 0 0 0 0 0 0 0 0 0 0 0 0 0 0 2 0",
      "0 0 0 0 0 0 0 0 0 0 0 0 0 0 0 0 0 0 0 0 0 0",
      "0 0 0 0 0 0 0 0 0 0 0 0 0 0 0 0 1 0 0 0 0 0",
      "0 0 0 0 0 2 0 0 0 0 0 0 0 0 0 0 0 0 0 1 0 0",
      "0 0 0 0 0 1 0 0 0 0 0 0 0 0 0 0 0 0 0 0 0 0",
      "0 0 0 1 0 0 0 0 0 0 0 1 1 0 0 0 0 0 2 0 0 0",
      "0 0 0 1 0 0 0 0 0 0 0 0 2 0 0 0 0 0 0 0 0 0",
      "0 0 2 1 0 0 0 0 0 0 0 0 2 0 0 0 0 0 1 0 0 0",
      "0 0 0 0 0 0 0 0 0 0 0 0 0 0 0 0 0 0 0 0 0 0",
      "0 0 0 0 0 0 0 0 0 0 0 0 1 1 0 0 1 0 2 0 0 0",
      "0 0 0 0 0 0 0 0 0 0 0 0 0 0 0 0 0 0 0 2 0 0",
      "0 0 0 0 0 1 0 0 0 0 0 0 0 0 0 0 0 0 0 0 0 0",
      "0 0 0 0 0 0 0 1 0 0 0 0 0 1 0 0 0 0 1 0 0 0",
      "0 0 0 0 0 1 0 0 0 0 0 0 0 0 0 1 0 0 0 0 0 0",
      "0 0 2 0 0 0 0 0 0 0 0 0 0 0 0 0 0 0 0 0 0 0",
      "0 0 1 0 0 0 0 0 0 0 0 0 1 1 0 0 1 0 1 0 1 0",
      "0 0 0 0 0 0 0 0 0 0 0 0 1 0 0 0 1 0 2 0 0 0",
      "0 0 0 0 0 0 0 0 0 0 0 2 1 0 0 0 1 0 0 0 0 0",
      "0 0 0 0 0 0 0 0 0 0 0 2 0 0 0 0 0 0 0 0 0 0"
    ],
    "value_scale": 0.1
  }
}
